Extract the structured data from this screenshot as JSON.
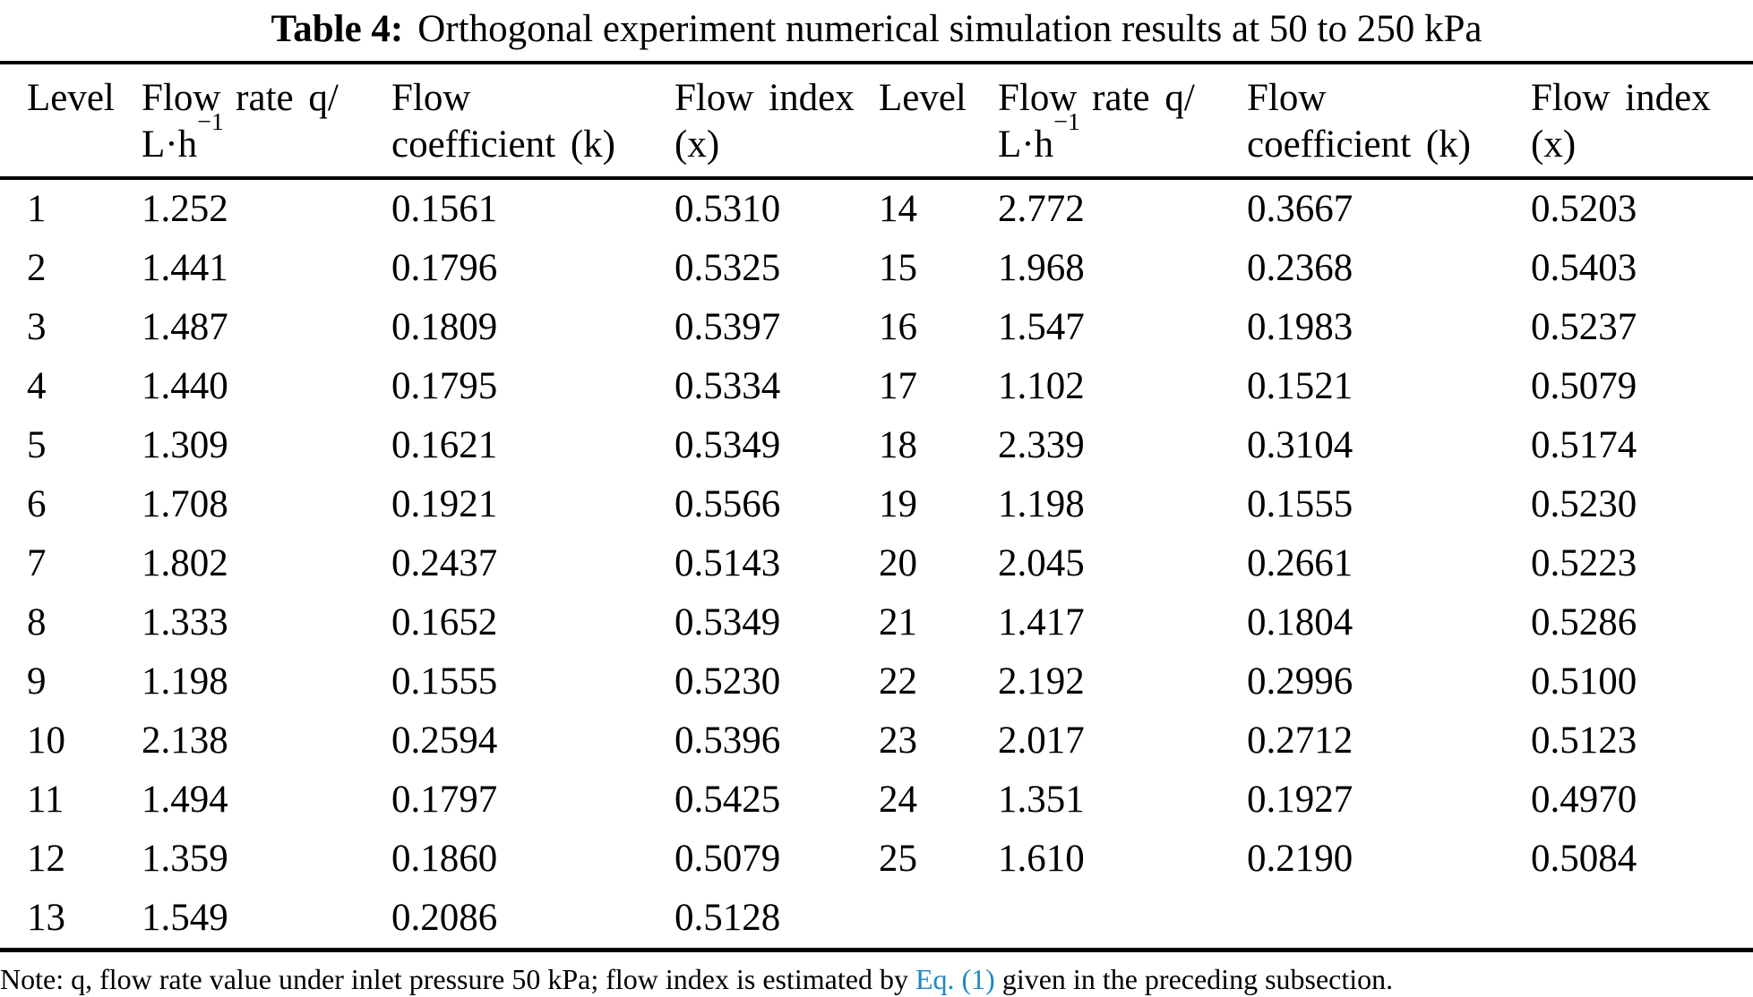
{
  "colors": {
    "background": "#ffffff",
    "text": "#000000",
    "link_blue": "#1d87c6"
  },
  "caption": {
    "label": "Table 4:",
    "text": "Orthogonal experiment numerical simulation results at 50 to 250 kPa"
  },
  "table": {
    "headers": [
      {
        "line1": "Level"
      },
      {
        "line1": "Flow rate q/",
        "unit_base": "L·h",
        "unit_sup": "−1"
      },
      {
        "line1": "Flow",
        "line2": "coefficient (k)"
      },
      {
        "line1": "Flow index",
        "line2": "(x)"
      },
      {
        "line1": "Level"
      },
      {
        "line1": "Flow rate q/",
        "unit_base": "L·h",
        "unit_sup": "−1"
      },
      {
        "line1": "Flow",
        "line2": "coefficient (k)"
      },
      {
        "line1": "Flow index",
        "line2": "(x)"
      }
    ],
    "rows": [
      [
        "1",
        "1.252",
        "0.1561",
        "0.5310",
        "14",
        "2.772",
        "0.3667",
        "0.5203"
      ],
      [
        "2",
        "1.441",
        "0.1796",
        "0.5325",
        "15",
        "1.968",
        "0.2368",
        "0.5403"
      ],
      [
        "3",
        "1.487",
        "0.1809",
        "0.5397",
        "16",
        "1.547",
        "0.1983",
        "0.5237"
      ],
      [
        "4",
        "1.440",
        "0.1795",
        "0.5334",
        "17",
        "1.102",
        "0.1521",
        "0.5079"
      ],
      [
        "5",
        "1.309",
        "0.1621",
        "0.5349",
        "18",
        "2.339",
        "0.3104",
        "0.5174"
      ],
      [
        "6",
        "1.708",
        "0.1921",
        "0.5566",
        "19",
        "1.198",
        "0.1555",
        "0.5230"
      ],
      [
        "7",
        "1.802",
        "0.2437",
        "0.5143",
        "20",
        "2.045",
        "0.2661",
        "0.5223"
      ],
      [
        "8",
        "1.333",
        "0.1652",
        "0.5349",
        "21",
        "1.417",
        "0.1804",
        "0.5286"
      ],
      [
        "9",
        "1.198",
        "0.1555",
        "0.5230",
        "22",
        "2.192",
        "0.2996",
        "0.5100"
      ],
      [
        "10",
        "2.138",
        "0.2594",
        "0.5396",
        "23",
        "2.017",
        "0.2712",
        "0.5123"
      ],
      [
        "11",
        "1.494",
        "0.1797",
        "0.5425",
        "24",
        "1.351",
        "0.1927",
        "0.4970"
      ],
      [
        "12",
        "1.359",
        "0.1860",
        "0.5079",
        "25",
        "1.610",
        "0.2190",
        "0.5084"
      ],
      [
        "13",
        "1.549",
        "0.2086",
        "0.5128",
        "",
        "",
        "",
        ""
      ]
    ]
  },
  "note": {
    "before_link": "Note: q, flow rate value under inlet pressure 50 kPa; flow index is estimated by ",
    "link_text": "Eq. (1)",
    "after_link": " given in the preceding subsection."
  }
}
